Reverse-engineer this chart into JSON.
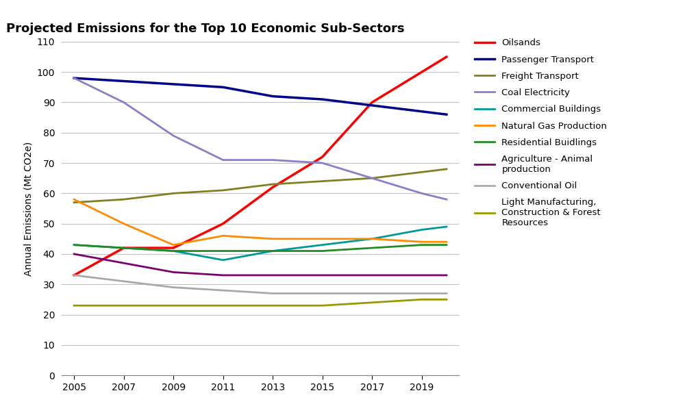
{
  "title": "Projected Emissions for the Top 10 Economic Sub-Sectors",
  "ylabel": "Annual Emissions (Mt CO2e)",
  "years": [
    2005,
    2007,
    2009,
    2011,
    2013,
    2015,
    2017,
    2019,
    2020
  ],
  "series": [
    {
      "name": "Oilsands",
      "color": "#FF0000",
      "linewidth": 2.5,
      "data": [
        33,
        42,
        42,
        50,
        62,
        72,
        90,
        100,
        105
      ]
    },
    {
      "name": "Passenger Transport",
      "color": "#00008B",
      "linewidth": 2.5,
      "data": [
        98,
        97,
        96,
        95,
        92,
        91,
        89,
        87,
        86
      ]
    },
    {
      "name": "Freight Transport",
      "color": "#808020",
      "linewidth": 2.0,
      "data": [
        57,
        58,
        60,
        61,
        63,
        64,
        65,
        67,
        68
      ]
    },
    {
      "name": "Coal Electricity",
      "color": "#8B7EC8",
      "linewidth": 2.0,
      "data": [
        98,
        90,
        79,
        71,
        71,
        70,
        65,
        60,
        58
      ]
    },
    {
      "name": "Commercial Buildings",
      "color": "#009999",
      "linewidth": 2.0,
      "data": [
        43,
        42,
        41,
        38,
        41,
        43,
        45,
        48,
        49
      ]
    },
    {
      "name": "Natural Gas Production",
      "color": "#FF8C00",
      "linewidth": 2.0,
      "data": [
        58,
        50,
        43,
        46,
        45,
        45,
        45,
        44,
        44
      ]
    },
    {
      "name": "Residential Buidlings",
      "color": "#228B22",
      "linewidth": 2.0,
      "data": [
        43,
        42,
        41,
        41,
        41,
        41,
        42,
        43,
        43
      ]
    },
    {
      "name": "Agriculture - Animal\nproduction",
      "color": "#7B0070",
      "linewidth": 2.0,
      "data": [
        40,
        37,
        34,
        33,
        33,
        33,
        33,
        33,
        33
      ]
    },
    {
      "name": "Conventional Oil",
      "color": "#A9A9A9",
      "linewidth": 2.0,
      "data": [
        33,
        31,
        29,
        28,
        27,
        27,
        27,
        27,
        27
      ]
    },
    {
      "name": "Light Manufacturing,\nConstruction & Forest\nResources",
      "color": "#999900",
      "linewidth": 2.0,
      "data": [
        23,
        23,
        23,
        23,
        23,
        23,
        24,
        25,
        25
      ]
    }
  ],
  "ylim": [
    0,
    110
  ],
  "yticks": [
    0,
    10,
    20,
    30,
    40,
    50,
    60,
    70,
    80,
    90,
    100,
    110
  ],
  "xticks": [
    2005,
    2007,
    2009,
    2011,
    2013,
    2015,
    2017,
    2019
  ],
  "xlim": [
    2004.5,
    2020.5
  ],
  "background_color": "#FFFFFF",
  "grid_color": "#C0C0C0",
  "title_fontsize": 13,
  "axis_label_fontsize": 10,
  "tick_fontsize": 10,
  "legend_fontsize": 9.5
}
